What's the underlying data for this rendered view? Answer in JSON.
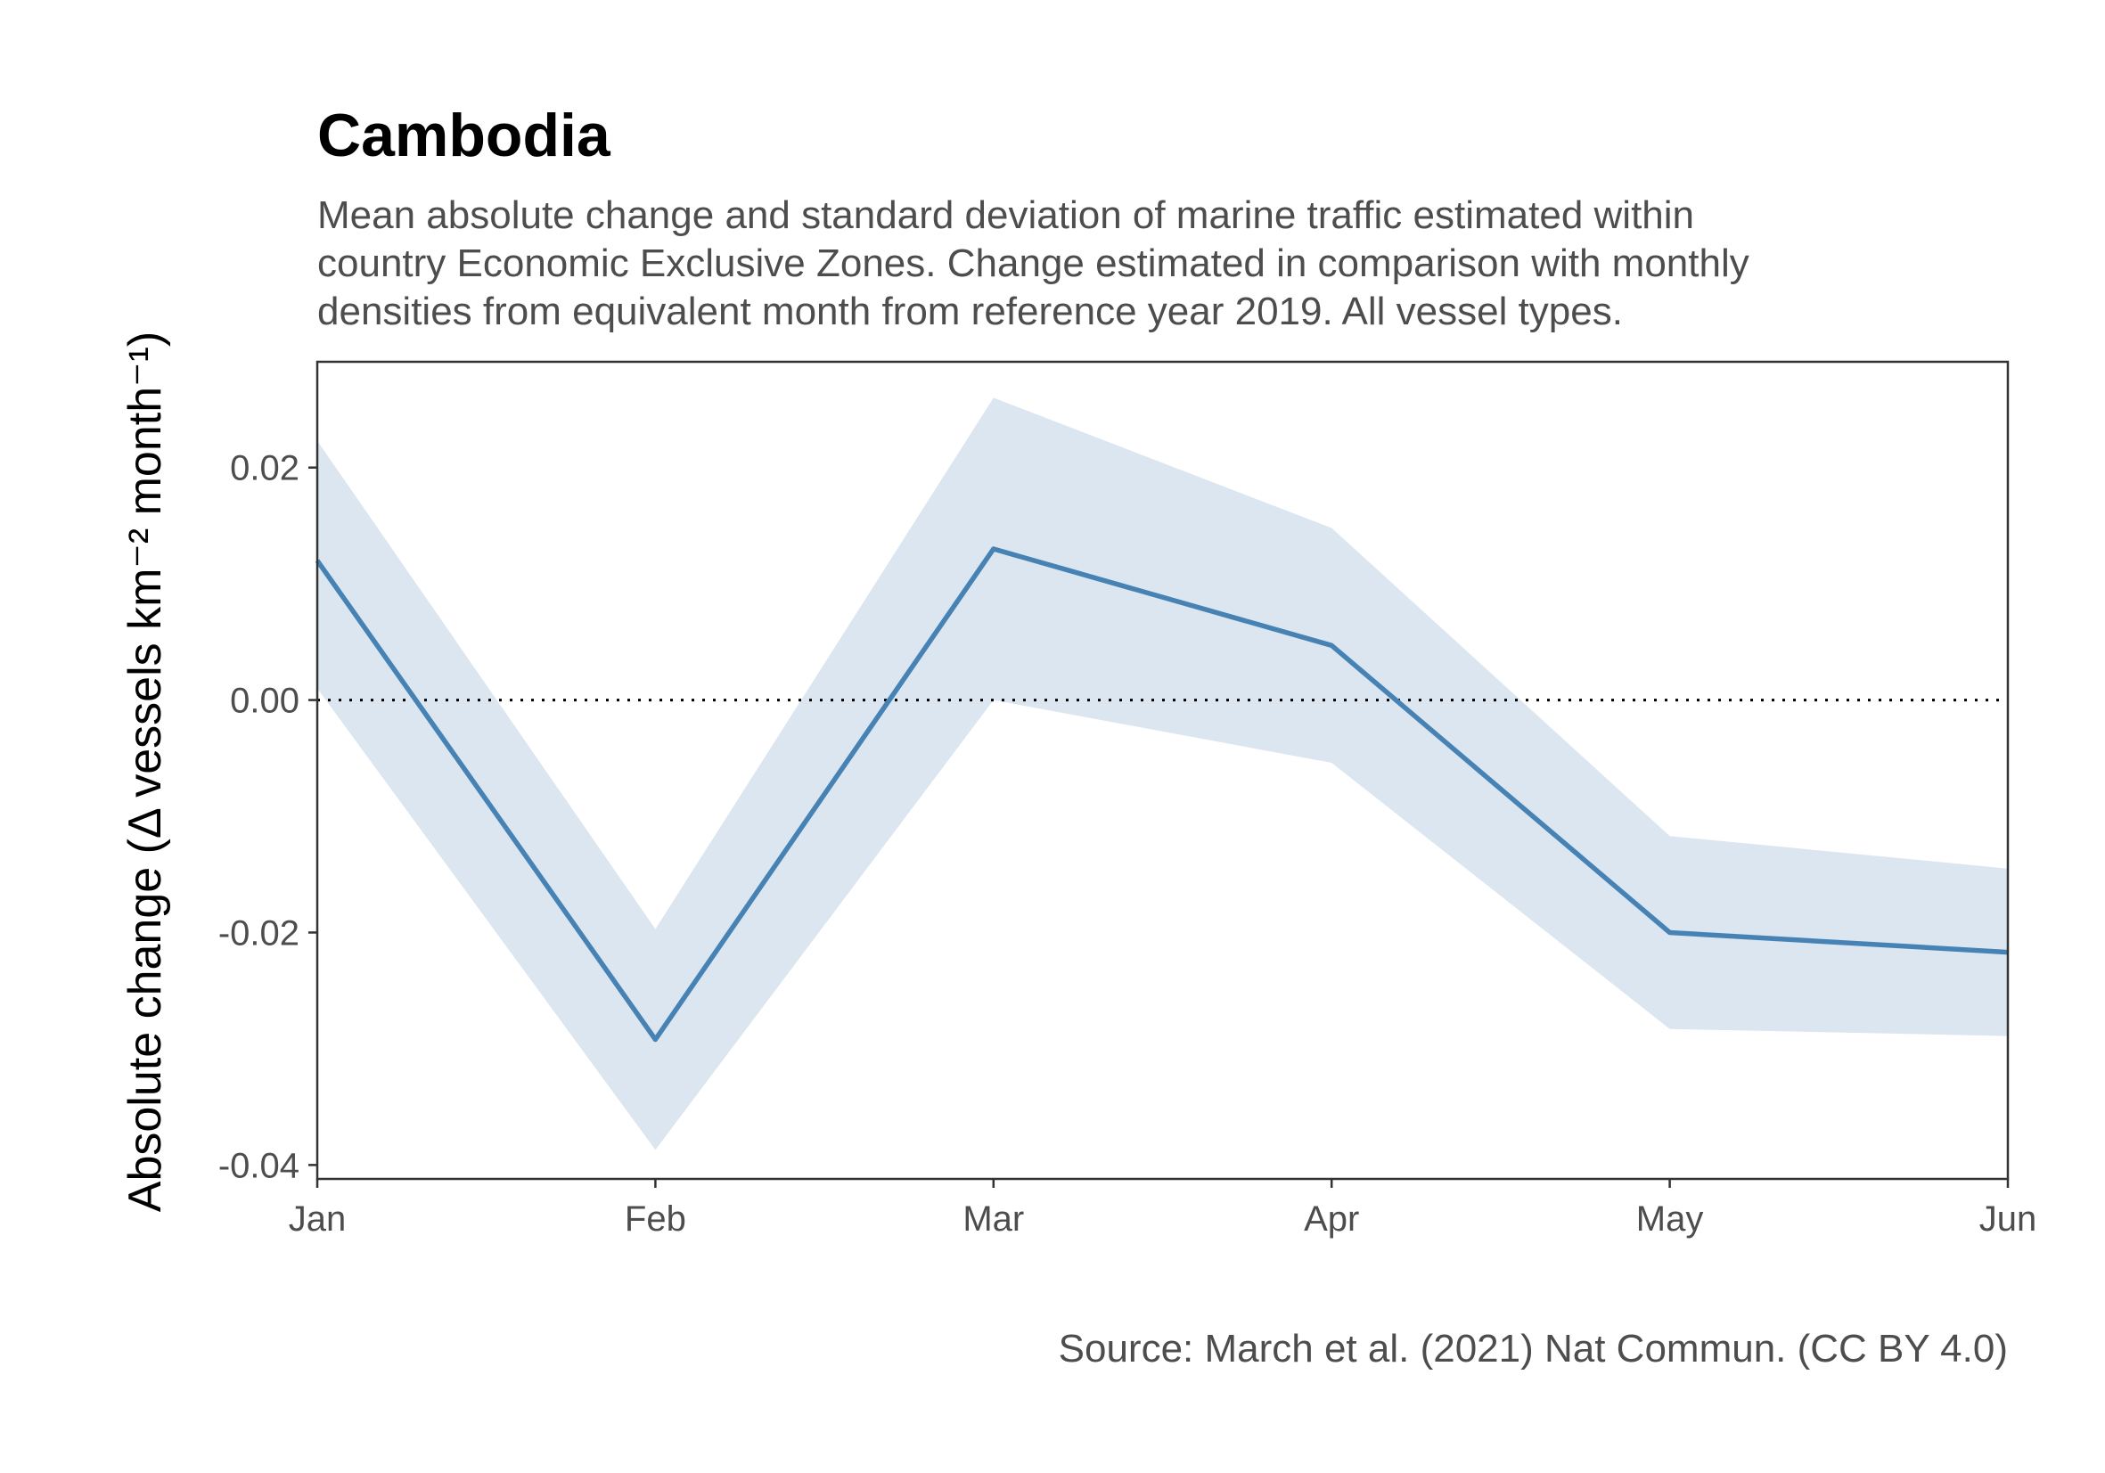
{
  "chart_data": {
    "type": "line",
    "title": "Cambodia",
    "subtitle": [
      "Mean absolute change and standard deviation of marine traffic estimated within",
      "country Economic Exclusive Zones. Change estimated in comparison with monthly",
      "densities from equivalent month from reference year 2019. All vessel types."
    ],
    "ylabel": "Absolute change (Δ vessels km⁻² month⁻¹)",
    "xlabel": "",
    "caption": "Source: March et al. (2021) Nat Commun. (CC BY 4.0)",
    "categories": [
      "Jan",
      "Feb",
      "Mar",
      "Apr",
      "May",
      "Jun"
    ],
    "series": [
      {
        "values": [
          0.012,
          -0.0292,
          0.013,
          0.0047,
          -0.02,
          -0.0217
        ],
        "sd_upper": [
          0.0223,
          -0.0197,
          0.026,
          0.0148,
          -0.0117,
          -0.0145
        ],
        "sd_lower": [
          0.001,
          -0.0387,
          0.0,
          -0.0054,
          -0.0283,
          -0.0289
        ]
      }
    ],
    "ylim": [
      -0.0412,
      0.0291
    ],
    "yticks": [
      0.02,
      0.0,
      -0.02,
      -0.04
    ],
    "ytick_labels": [
      "0.02",
      "0.00",
      "-0.02",
      "-0.04"
    ],
    "reference_line": 0,
    "grid": false,
    "legend": "none",
    "colors": {
      "line": "#4682b4",
      "band": "#dce6f0",
      "reference": "#000000",
      "axis": "#333333"
    }
  }
}
